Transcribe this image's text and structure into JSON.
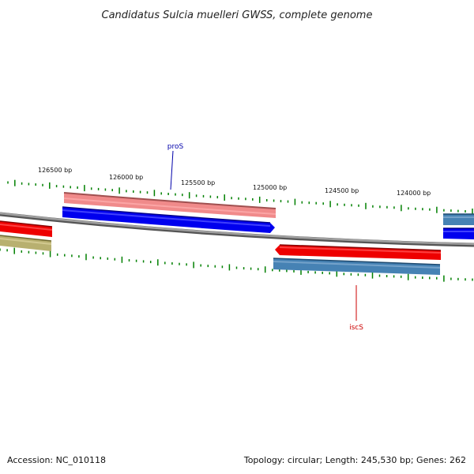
{
  "title": "Candidatus Sulcia muelleri GWSS, complete genome",
  "ticks": [
    {
      "bp": 126500,
      "label": "126500 bp"
    },
    {
      "bp": 126000,
      "label": "126000 bp"
    },
    {
      "bp": 125500,
      "label": "125500 bp"
    },
    {
      "bp": 125000,
      "label": "125000 bp"
    },
    {
      "bp": 124500,
      "label": "124500 bp"
    },
    {
      "bp": 124000,
      "label": "124000 bp"
    }
  ],
  "gene_labels": [
    {
      "name": "proS",
      "color": "#0000aa"
    },
    {
      "name": "iscS",
      "color": "#cc0000"
    }
  ],
  "colors": {
    "backbone": "#808080",
    "tick": "#008000",
    "forward_blue": "#0000ee",
    "forward_pink": "#f08080",
    "reverse_red": "#ee0000",
    "reverse_steel": "#4682b4",
    "olive": "#b0a860"
  },
  "footer": {
    "accession": "Accession: NC_010118",
    "summary": "Topology: circular; Length: 245,530 bp; Genes: 262"
  }
}
